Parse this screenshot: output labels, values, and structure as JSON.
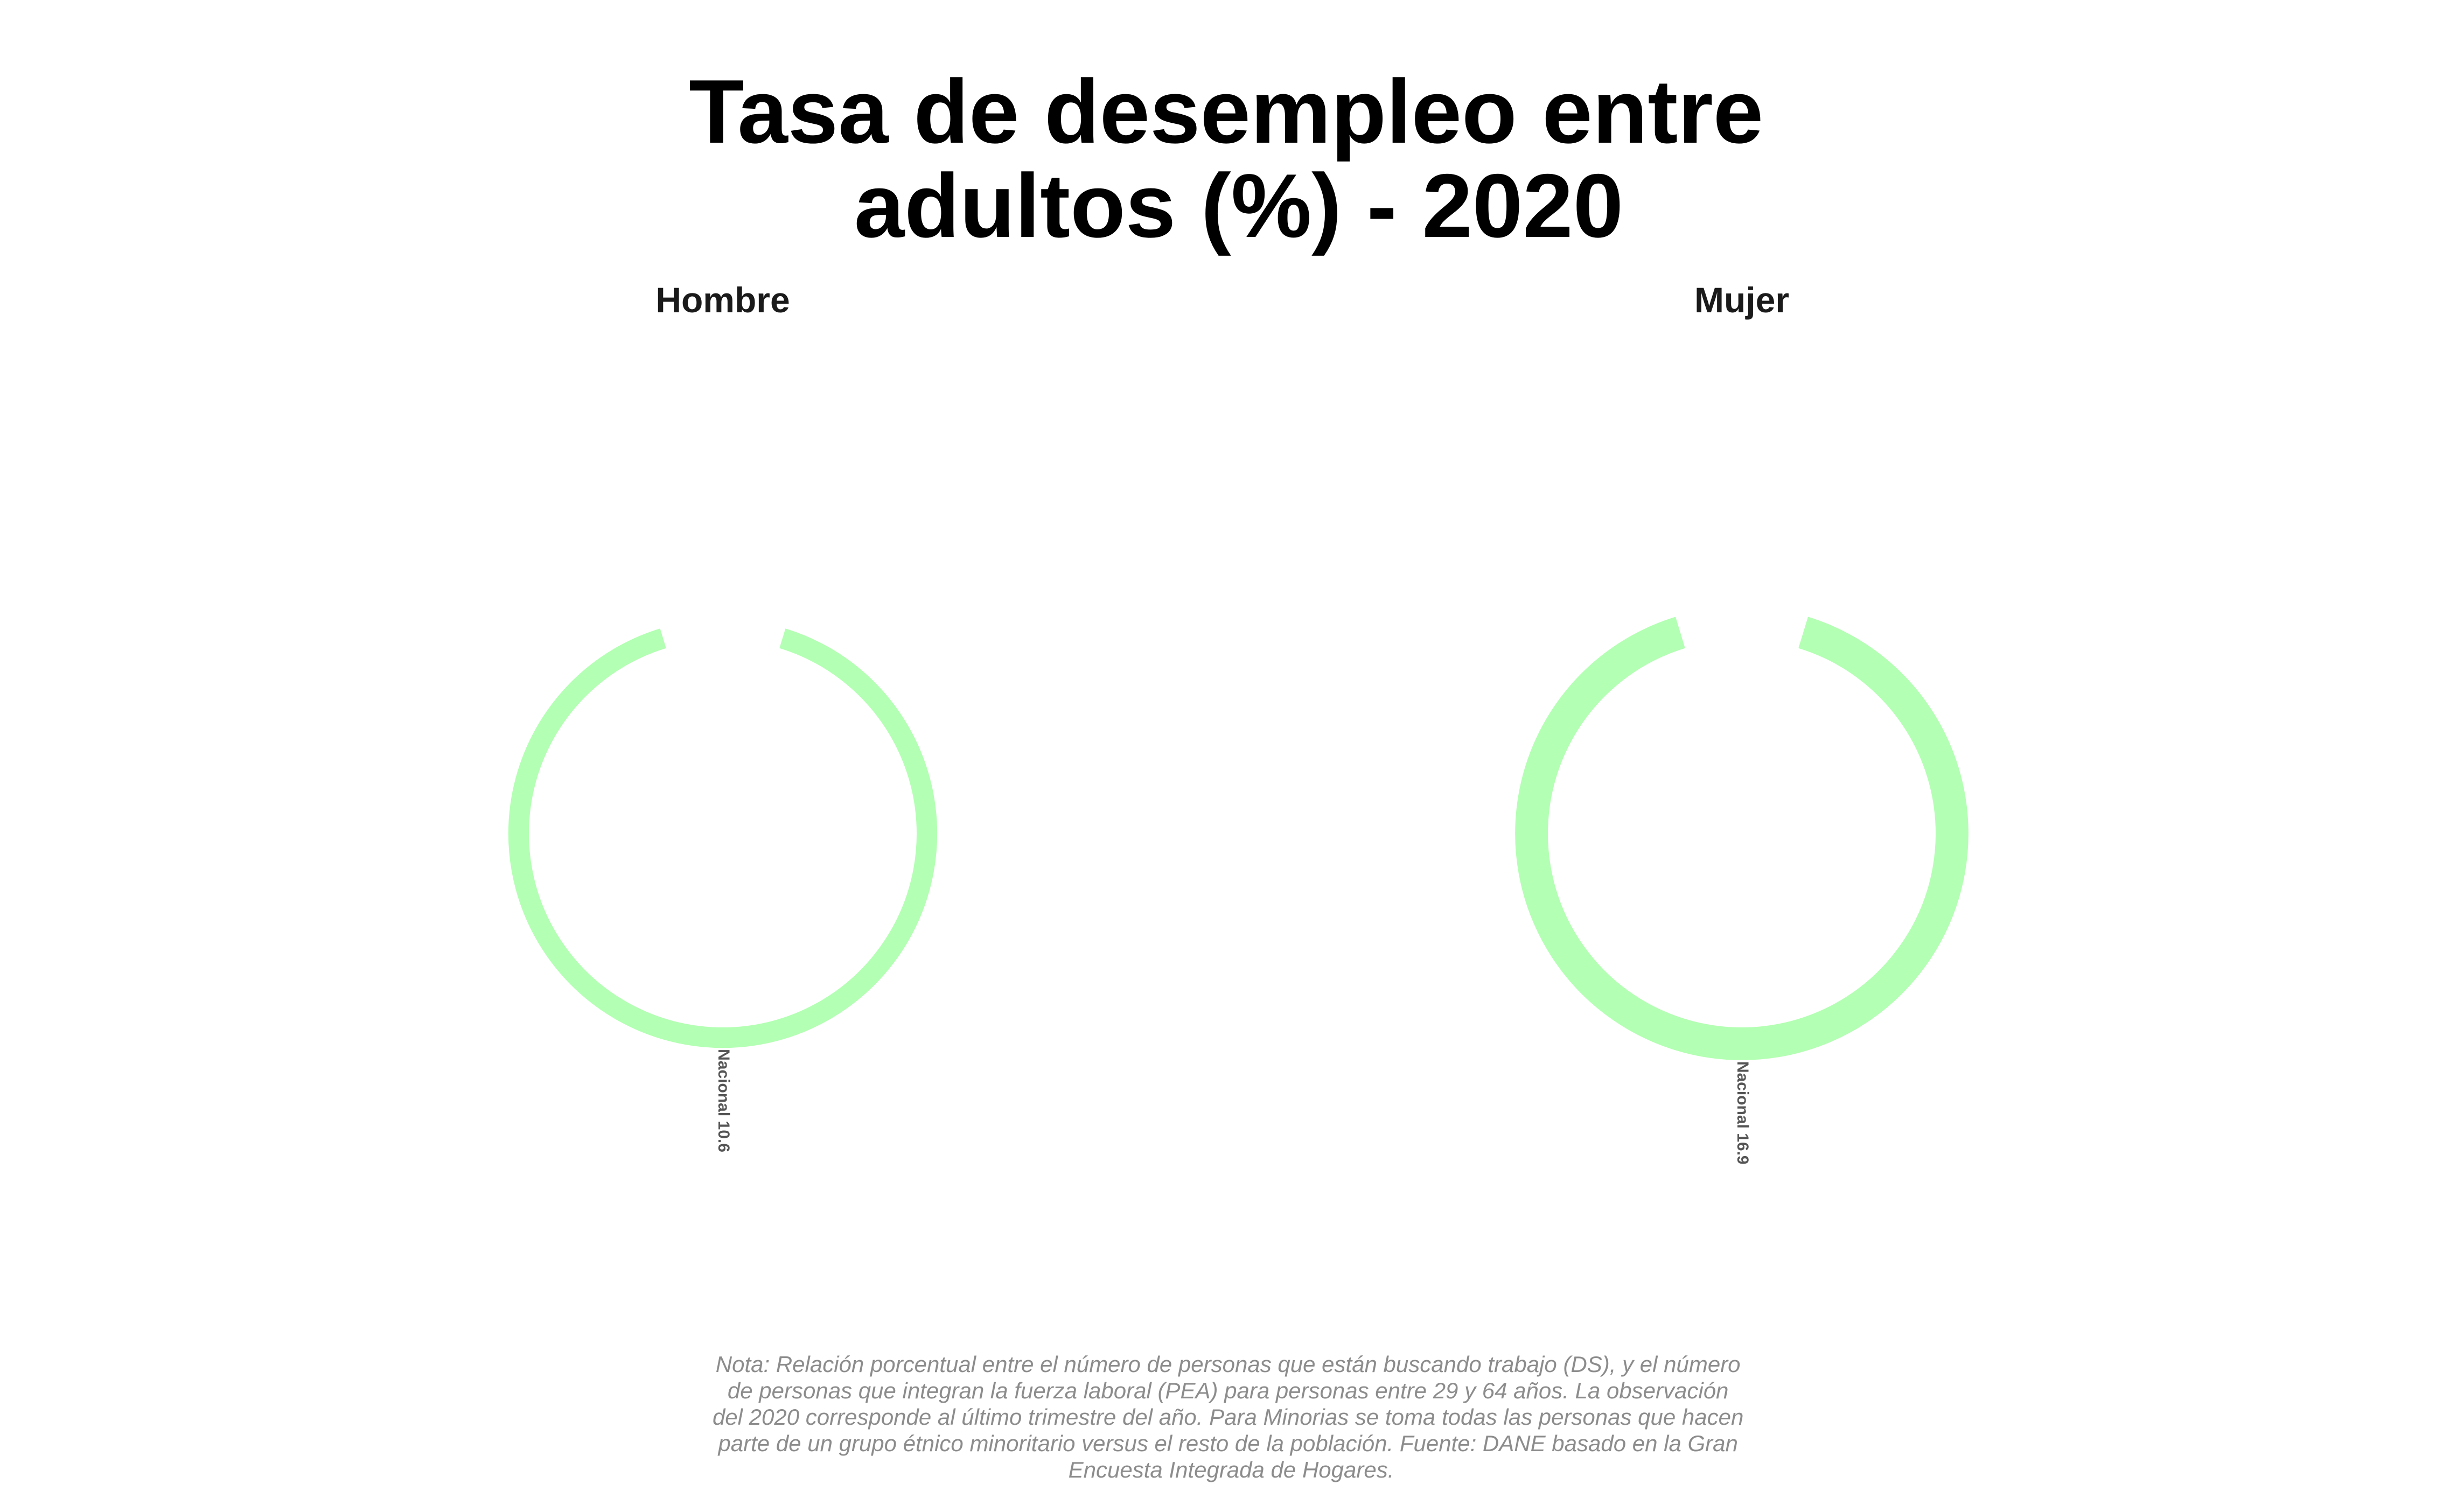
{
  "colors": {
    "ring": "#b3ffb3"
  },
  "chart_data": {
    "type": "bar",
    "subtype": "radial",
    "title": "Tasa de desempleo entre adultos (%) - 2020",
    "title_lines": [
      "Tasa de desempleo entre",
      "adultos (%) - 2020"
    ],
    "panels": [
      {
        "name": "Hombre",
        "categories": [
          "Nacional"
        ],
        "values": [
          10.6
        ],
        "label": "Nacional 10.6"
      },
      {
        "name": "Mujer",
        "categories": [
          "Nacional"
        ],
        "values": [
          16.9
        ],
        "label": "Nacional 16.9"
      }
    ],
    "ylim": [
      0,
      20
    ],
    "grid": false,
    "legend": "none"
  },
  "note": {
    "lines": [
      "Nota: Relación porcentual entre el número de personas que están buscando trabajo (DS), y el número",
      "de personas que integran la fuerza laboral (PEA) para personas entre 29 y 64 años. La observación",
      "del 2020 corresponde al último trimestre del año. Para Minorias se toma todas las personas que hacen",
      "parte de un grupo étnico minoritario versus el resto de la población. Fuente: DANE basado en la Gran",
      "Encuesta Integrada de Hogares."
    ]
  }
}
